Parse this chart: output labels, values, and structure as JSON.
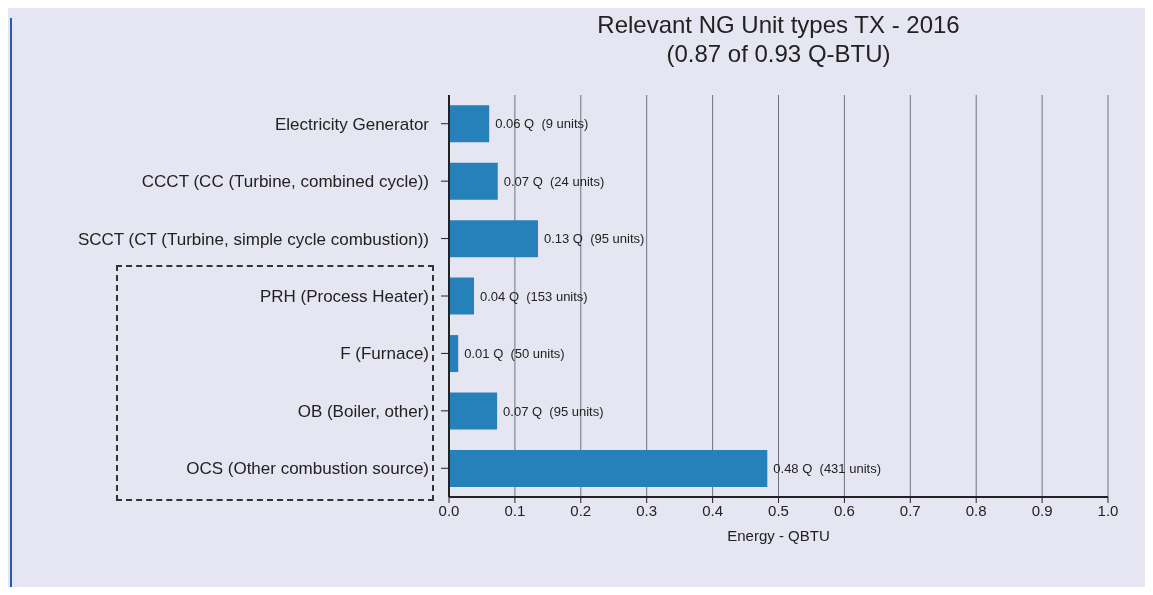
{
  "chart_data": {
    "type": "bar",
    "orientation": "horizontal",
    "title": "Relevant NG Unit types TX - 2016\n(0.87 of 0.93 Q-BTU)",
    "xlabel": "Energy - QBTU",
    "categories": [
      "Electricity Generator",
      "CCCT (CC (Turbine, combined cycle))",
      "SCCT (CT (Turbine, simple cycle combustion))",
      "PRH (Process Heater)",
      "F (Furnace)",
      "OB (Boiler, other)",
      "OCS (Other combustion source)"
    ],
    "values": [
      0.061,
      0.074,
      0.135,
      0.038,
      0.014,
      0.073,
      0.483
    ],
    "value_labels": [
      "0.06 Q  (9 units)",
      "0.07 Q  (24 units)",
      "0.13 Q  (95 units)",
      "0.04 Q  (153 units)",
      "0.01 Q  (50 units)",
      "0.07 Q  (95 units)",
      "0.48 Q  (431 units)"
    ],
    "color": "#2680ba",
    "xlim": [
      0,
      1
    ],
    "xticks": [
      {
        "value": 0,
        "label": "0.0"
      },
      0.1,
      0.2,
      0.3,
      0.4,
      0.5,
      0.6,
      0.7,
      0.8,
      0.9,
      {
        "value": 1,
        "label": "1.0"
      }
    ],
    "grid": "x",
    "legend": false
  }
}
